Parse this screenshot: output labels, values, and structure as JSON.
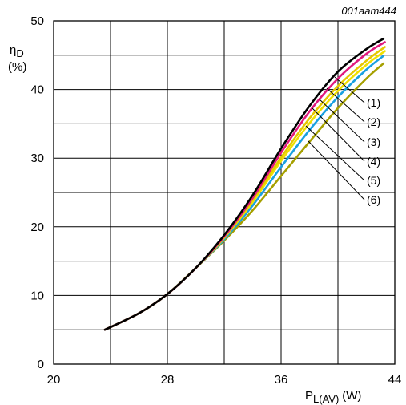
{
  "chart_data": {
    "type": "line",
    "figure_id": "001aam444",
    "ylabel_symbol": "η",
    "ylabel_sub": "D",
    "ylabel_unit": "(%)",
    "xlabel_symbol": "P",
    "xlabel_sub": "L(AV)",
    "xlabel_unit": "(W)",
    "xlim": [
      20,
      44
    ],
    "ylim": [
      0,
      50
    ],
    "x_ticks": [
      20,
      28,
      36,
      44
    ],
    "y_ticks": [
      0,
      10,
      20,
      30,
      40,
      50
    ],
    "grid": true,
    "series": [
      {
        "name": "(1)",
        "color": "#000000",
        "x": [
          23.6,
          26,
          28,
          30,
          32,
          34,
          36,
          38,
          40,
          42,
          43.2
        ],
        "y": [
          5,
          7.4,
          10.2,
          14,
          18.8,
          24.6,
          31.4,
          37.6,
          42.6,
          45.9,
          47.4
        ]
      },
      {
        "name": "(2)",
        "color": "#e0197d",
        "x": [
          23.6,
          26,
          28,
          30,
          32,
          34,
          36,
          38,
          40,
          42,
          43.3
        ],
        "y": [
          5,
          7.4,
          10.2,
          14,
          18.6,
          24.2,
          30.8,
          36.8,
          41.6,
          45.2,
          46.9
        ]
      },
      {
        "name": "(3)",
        "color": "#e6c800",
        "x": [
          23.6,
          26,
          28,
          30,
          32,
          34,
          36,
          38,
          40,
          42,
          43.3
        ],
        "y": [
          5,
          7.4,
          10.2,
          14,
          18.5,
          23.9,
          30.1,
          35.8,
          40.5,
          44.2,
          46.2
        ]
      },
      {
        "name": "(4)",
        "color": "#f0e000",
        "x": [
          23.6,
          26,
          28,
          30,
          32,
          34,
          36,
          38,
          40,
          42,
          43.3
        ],
        "y": [
          5,
          7.4,
          10.2,
          14,
          18.4,
          23.6,
          29.6,
          35.1,
          39.8,
          43.6,
          45.6
        ]
      },
      {
        "name": "(5)",
        "color": "#1aa0e0",
        "x": [
          23.6,
          26,
          28,
          30,
          32,
          34,
          36,
          38,
          40,
          42,
          43.2
        ],
        "y": [
          5,
          7.4,
          10.2,
          14,
          18.2,
          23.1,
          28.7,
          34.1,
          38.9,
          42.9,
          44.9
        ]
      },
      {
        "name": "(6)",
        "color": "#a6a000",
        "x": [
          23.6,
          26,
          28,
          30,
          32,
          34,
          36,
          38,
          40,
          42,
          43.2
        ],
        "y": [
          5,
          7.4,
          10.2,
          14,
          18.0,
          22.4,
          27.4,
          32.4,
          37.3,
          41.6,
          43.8
        ]
      }
    ]
  }
}
